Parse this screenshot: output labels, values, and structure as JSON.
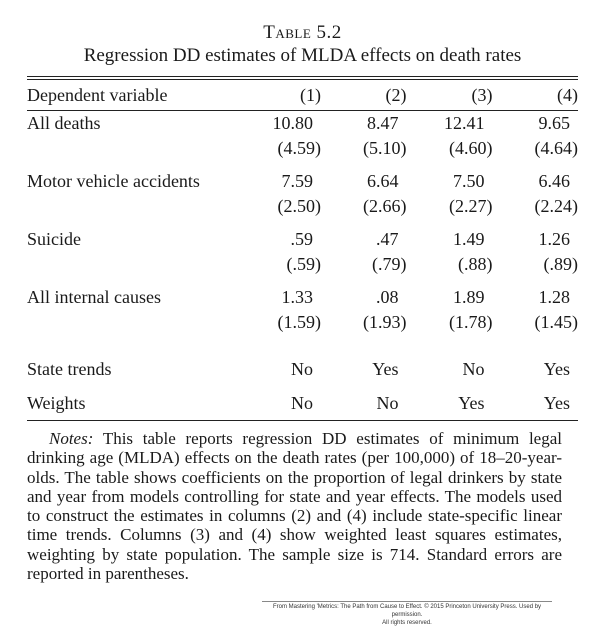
{
  "caption": {
    "label": "Table 5.2",
    "title": "Regression DD estimates of MLDA effects on death rates"
  },
  "table": {
    "header": {
      "dep_var_label": "Dependent variable",
      "columns": [
        "(1)",
        "(2)",
        "(3)",
        "(4)"
      ]
    },
    "rows": [
      {
        "label": "All deaths",
        "coefficients": [
          "10.80",
          "8.47",
          "12.41",
          "9.65"
        ],
        "standard_errors": [
          "(4.59)",
          "(5.10)",
          "(4.60)",
          "(4.64)"
        ]
      },
      {
        "label": "Motor vehicle accidents",
        "coefficients": [
          "7.59",
          "6.64",
          "7.50",
          "6.46"
        ],
        "standard_errors": [
          "(2.50)",
          "(2.66)",
          "(2.27)",
          "(2.24)"
        ]
      },
      {
        "label": "Suicide",
        "coefficients": [
          ".59",
          ".47",
          "1.49",
          "1.26"
        ],
        "standard_errors": [
          "(.59)",
          "(.79)",
          "(.88)",
          "(.89)"
        ]
      },
      {
        "label": "All internal causes",
        "coefficients": [
          "1.33",
          ".08",
          "1.89",
          "1.28"
        ],
        "standard_errors": [
          "(1.59)",
          "(1.93)",
          "(1.78)",
          "(1.45)"
        ]
      }
    ],
    "specs": [
      {
        "label": "State trends",
        "values": [
          "No",
          "Yes",
          "No",
          "Yes"
        ]
      },
      {
        "label": "Weights",
        "values": [
          "No",
          "No",
          "Yes",
          "Yes"
        ]
      }
    ]
  },
  "notes": {
    "label": "Notes:",
    "text": "This table reports regression DD estimates of minimum legal drinking age (MLDA) effects on the death rates (per 100,000) of 18–20-year-olds. The table shows coefficients on the proportion of legal drinkers by state and year from models controlling for state and year effects. The models used to construct the estimates in columns (2) and (4) include state-specific linear time trends. Columns (3) and (4) show weighted least squares estimates, weighting by state population. The sample size is 714. Standard errors are reported in parentheses."
  },
  "credit": {
    "line1": "From Mastering 'Metrics: The Path from Cause to Effect. © 2015 Princeton University Press. Used by permission.",
    "line2": "All rights reserved."
  }
}
